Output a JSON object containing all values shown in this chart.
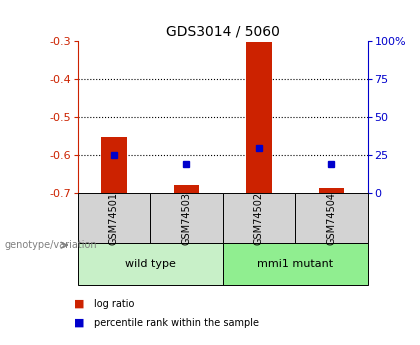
{
  "title": "GDS3014 / 5060",
  "samples": [
    "GSM74501",
    "GSM74503",
    "GSM74502",
    "GSM74504"
  ],
  "log_ratios": [
    -0.553,
    -0.678,
    -0.302,
    -0.686
  ],
  "percentile_ranks": [
    25.0,
    19.0,
    30.0,
    19.5
  ],
  "ylim_left": [
    -0.7,
    -0.3
  ],
  "ylim_right": [
    0,
    100
  ],
  "yticks_left": [
    -0.7,
    -0.6,
    -0.5,
    -0.4,
    -0.3
  ],
  "yticks_right": [
    0,
    25,
    50,
    75,
    100
  ],
  "groups": [
    {
      "label": "wild type",
      "samples": [
        0,
        1
      ],
      "color": "#c8f0c8"
    },
    {
      "label": "mmi1 mutant",
      "samples": [
        2,
        3
      ],
      "color": "#90ee90"
    }
  ],
  "bar_color": "#cc2200",
  "marker_color": "#0000cc",
  "left_axis_color": "#cc2200",
  "right_axis_color": "#0000cc",
  "bg_color": "#ffffff",
  "sample_bg_color": "#d3d3d3",
  "dotted_grid_yticks": [
    -0.6,
    -0.5,
    -0.4
  ],
  "bar_width": 0.35,
  "legend_items": [
    {
      "label": "log ratio",
      "color": "#cc2200"
    },
    {
      "label": "percentile rank within the sample",
      "color": "#0000cc"
    }
  ]
}
